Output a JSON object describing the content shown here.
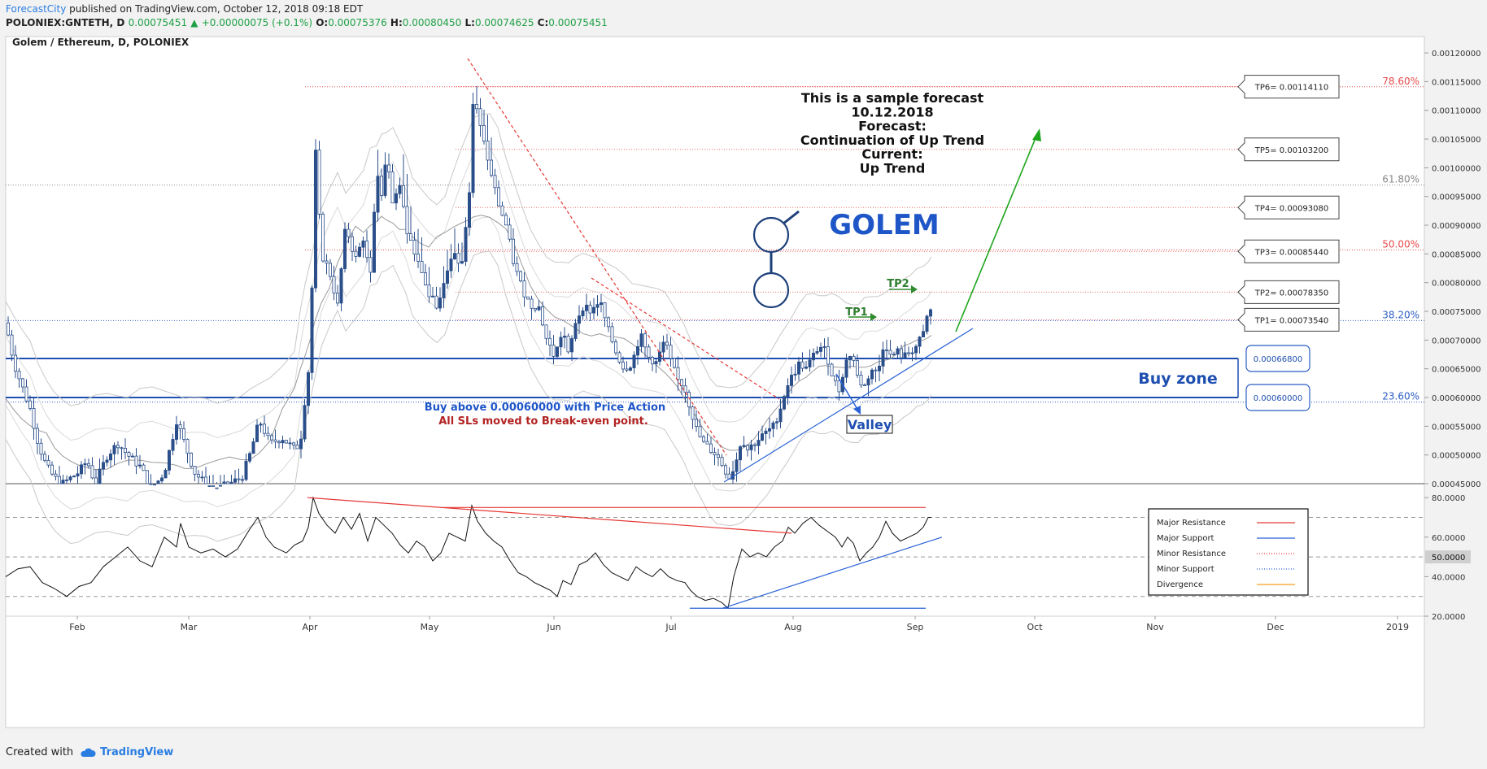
{
  "header": {
    "brand": "ForecastCity",
    "published_text": "published on TradingView.com, October 12, 2018 09:18 EDT",
    "symbol": "POLONIEX:GNTETH, D",
    "last": "0.00075451",
    "change": "+0.00000075 (+0.1%)",
    "o_label": "O:",
    "o": "0.00075376",
    "h_label": "H:",
    "h": "0.00080450",
    "l_label": "L:",
    "l": "0.00074625",
    "c_label": "C:",
    "c": "0.00075451"
  },
  "chart_data": {
    "type": "candlestick",
    "title": "Golem / Ethereum, D, POLONIEX",
    "y_range": [
      0.00045,
      0.00121
    ],
    "y_ticks": [
      "0.00120000",
      "0.00115000",
      "0.00110000",
      "0.00105000",
      "0.00100000",
      "0.00095000",
      "0.00090000",
      "0.00085000",
      "0.00080000",
      "0.00075000",
      "0.00070000",
      "0.00065000",
      "0.00060000",
      "0.00055000",
      "0.00050000",
      "0.00045000"
    ],
    "y_tick_values": [
      0.0012,
      0.00115,
      0.0011,
      0.00105,
      0.001,
      0.00095,
      0.0009,
      0.00085,
      0.0008,
      0.00075,
      0.0007,
      0.00065,
      0.0006,
      0.00055,
      0.0005,
      0.00045
    ],
    "x_tick_labels": [
      "Feb",
      "Mar",
      "Apr",
      "May",
      "Jun",
      "Jul",
      "Aug",
      "Sep",
      "Oct",
      "Nov",
      "Dec",
      "2019"
    ],
    "price_path": [
      [
        0,
        0.00073
      ],
      [
        10,
        0.00066
      ],
      [
        20,
        0.00062
      ],
      [
        30,
        0.00058
      ],
      [
        40,
        0.00052
      ],
      [
        50,
        0.00048
      ],
      [
        60,
        0.00046
      ],
      [
        70,
        0.00045
      ],
      [
        80,
        0.00046
      ],
      [
        90,
        0.00047
      ],
      [
        100,
        0.00049
      ],
      [
        110,
        0.00045
      ],
      [
        125,
        0.0005
      ],
      [
        138,
        0.00052
      ],
      [
        150,
        0.0005
      ],
      [
        165,
        0.00048
      ],
      [
        180,
        0.00044
      ],
      [
        195,
        0.00047
      ],
      [
        210,
        0.00056
      ],
      [
        220,
        0.00052
      ],
      [
        232,
        0.00047
      ],
      [
        245,
        0.00045
      ],
      [
        260,
        0.00044
      ],
      [
        275,
        0.00045
      ],
      [
        290,
        0.00046
      ],
      [
        300,
        0.0005
      ],
      [
        312,
        0.00056
      ],
      [
        325,
        0.00052
      ],
      [
        340,
        0.00053
      ],
      [
        355,
        0.00051
      ],
      [
        362,
        0.00052
      ],
      [
        368,
        0.0006
      ],
      [
        375,
        0.00068
      ],
      [
        380,
        0.00105
      ],
      [
        388,
        0.00085
      ],
      [
        398,
        0.00082
      ],
      [
        408,
        0.00076
      ],
      [
        418,
        0.0009
      ],
      [
        430,
        0.00084
      ],
      [
        440,
        0.00088
      ],
      [
        448,
        0.0008
      ],
      [
        456,
        0.001
      ],
      [
        462,
        0.00095
      ],
      [
        468,
        0.00103
      ],
      [
        476,
        0.00093
      ],
      [
        484,
        0.00098
      ],
      [
        492,
        0.0009
      ],
      [
        500,
        0.00086
      ],
      [
        510,
        0.00083
      ],
      [
        520,
        0.00078
      ],
      [
        530,
        0.00076
      ],
      [
        540,
        0.0008
      ],
      [
        550,
        0.00086
      ],
      [
        560,
        0.00082
      ],
      [
        570,
        0.00096
      ],
      [
        575,
        0.00113
      ],
      [
        585,
        0.00106
      ],
      [
        595,
        0.001
      ],
      [
        605,
        0.00094
      ],
      [
        615,
        0.0009
      ],
      [
        625,
        0.00083
      ],
      [
        635,
        0.00079
      ],
      [
        645,
        0.00076
      ],
      [
        655,
        0.00076
      ],
      [
        665,
        0.0007
      ],
      [
        675,
        0.00067
      ],
      [
        685,
        0.00072
      ],
      [
        692,
        0.00067
      ],
      [
        700,
        0.00073
      ],
      [
        710,
        0.00076
      ],
      [
        720,
        0.00075
      ],
      [
        730,
        0.00077
      ],
      [
        740,
        0.00072
      ],
      [
        750,
        0.00068
      ],
      [
        760,
        0.00065
      ],
      [
        770,
        0.00066
      ],
      [
        780,
        0.00071
      ],
      [
        790,
        0.00067
      ],
      [
        800,
        0.00066
      ],
      [
        810,
        0.0007
      ],
      [
        818,
        0.00066
      ],
      [
        826,
        0.00063
      ],
      [
        834,
        0.00062
      ],
      [
        842,
        0.00058
      ],
      [
        850,
        0.00054
      ],
      [
        858,
        0.00052
      ],
      [
        866,
        0.00051
      ],
      [
        874,
        0.0005
      ],
      [
        882,
        0.00048
      ],
      [
        890,
        0.00046
      ],
      [
        898,
        0.00049
      ],
      [
        905,
        0.00053
      ],
      [
        912,
        0.00051
      ],
      [
        920,
        0.00052
      ],
      [
        928,
        0.00053
      ],
      [
        936,
        0.00054
      ],
      [
        944,
        0.00055
      ],
      [
        952,
        0.00058
      ],
      [
        960,
        0.00062
      ],
      [
        968,
        0.00064
      ],
      [
        976,
        0.00066
      ],
      [
        984,
        0.00065
      ],
      [
        992,
        0.00067
      ],
      [
        1000,
        0.00069
      ],
      [
        1008,
        0.00068
      ],
      [
        1016,
        0.00064
      ],
      [
        1024,
        0.00061
      ],
      [
        1032,
        0.00066
      ],
      [
        1040,
        0.00068
      ],
      [
        1048,
        0.00063
      ],
      [
        1056,
        0.00062
      ],
      [
        1064,
        0.00065
      ],
      [
        1072,
        0.00064
      ],
      [
        1080,
        0.0007
      ],
      [
        1088,
        0.00067
      ],
      [
        1096,
        0.00068
      ],
      [
        1104,
        0.00067
      ],
      [
        1112,
        0.00068
      ],
      [
        1120,
        0.00069
      ],
      [
        1128,
        0.00071
      ],
      [
        1134,
        0.00075
      ],
      [
        1138,
        0.00075
      ]
    ],
    "fib_levels": [
      {
        "label": "78.60%",
        "value": 0.001141,
        "color": "#e84b4b",
        "style": "dotted"
      },
      {
        "label": "61.80%",
        "value": 0.00097,
        "color": "#888888",
        "style": "dotted"
      },
      {
        "label": "50.00%",
        "value": 0.000857,
        "color": "#e84b4b",
        "style": "dotted"
      },
      {
        "label": "38.20%",
        "value": 0.000734,
        "color": "#2b5cc4",
        "style": "dotted"
      },
      {
        "label": "23.60%",
        "value": 0.000592,
        "color": "#2b5cc4",
        "style": "dotted"
      }
    ],
    "tp_levels": [
      {
        "label": "TP6= 0.00114110",
        "value": 0.0011411
      },
      {
        "label": "TP5= 0.00103200",
        "value": 0.001032
      },
      {
        "label": "TP4= 0.00093080",
        "value": 0.0009308
      },
      {
        "label": "TP3= 0.00085440",
        "value": 0.0008544
      },
      {
        "label": "TP2= 0.00078350",
        "value": 0.0007835
      },
      {
        "label": "TP1= 0.00073540",
        "value": 0.0007354
      }
    ],
    "buy_zone": {
      "label": "Buy zone",
      "top": 0.000668,
      "bottom": 0.0006,
      "top_label": "0.00066800",
      "bottom_label": "0.00060000"
    },
    "annotations": {
      "forecast_lines": [
        "This is a sample forecast",
        "10.12.2018",
        "Forecast:",
        "Continuation of Up Trend",
        "Current:",
        "Up Trend"
      ],
      "golem": "GOLEM",
      "tp1": "TP1",
      "tp2": "TP2",
      "valley": "Valley",
      "buy_note": "Buy above 0.00060000 with Price Action",
      "sl_note": "All SLs moved to Break-even point."
    },
    "colors": {
      "candle": "#2b4f8a",
      "major_resistance": "#e53935",
      "major_support": "#2962d6",
      "arrow": "#1ea51e",
      "buy_zone": "#1e4fb0"
    }
  },
  "rsi": {
    "range": [
      20,
      85
    ],
    "ticks": [
      "80.0000",
      "60.0000",
      "40.0000",
      "20.0000"
    ],
    "tick_values": [
      80,
      60,
      40,
      20
    ],
    "current": "50.0000",
    "current_value": 50,
    "path": [
      [
        0,
        40
      ],
      [
        15,
        44
      ],
      [
        30,
        45
      ],
      [
        45,
        37
      ],
      [
        60,
        34
      ],
      [
        75,
        30
      ],
      [
        90,
        35
      ],
      [
        105,
        37
      ],
      [
        120,
        45
      ],
      [
        135,
        50
      ],
      [
        150,
        55
      ],
      [
        165,
        48
      ],
      [
        180,
        45
      ],
      [
        195,
        60
      ],
      [
        210,
        55
      ],
      [
        215,
        67
      ],
      [
        225,
        55
      ],
      [
        240,
        52
      ],
      [
        255,
        54
      ],
      [
        270,
        50
      ],
      [
        285,
        54
      ],
      [
        300,
        64
      ],
      [
        310,
        70
      ],
      [
        320,
        60
      ],
      [
        330,
        55
      ],
      [
        345,
        52
      ],
      [
        355,
        56
      ],
      [
        365,
        58
      ],
      [
        372,
        65
      ],
      [
        378,
        80
      ],
      [
        385,
        72
      ],
      [
        395,
        66
      ],
      [
        405,
        62
      ],
      [
        415,
        70
      ],
      [
        425,
        64
      ],
      [
        435,
        72
      ],
      [
        445,
        58
      ],
      [
        455,
        70
      ],
      [
        465,
        66
      ],
      [
        475,
        62
      ],
      [
        485,
        56
      ],
      [
        495,
        52
      ],
      [
        505,
        58
      ],
      [
        515,
        55
      ],
      [
        525,
        48
      ],
      [
        535,
        52
      ],
      [
        545,
        62
      ],
      [
        555,
        60
      ],
      [
        565,
        58
      ],
      [
        573,
        76
      ],
      [
        580,
        68
      ],
      [
        590,
        62
      ],
      [
        600,
        58
      ],
      [
        610,
        55
      ],
      [
        620,
        48
      ],
      [
        630,
        42
      ],
      [
        640,
        40
      ],
      [
        650,
        37
      ],
      [
        660,
        35
      ],
      [
        670,
        33
      ],
      [
        678,
        30
      ],
      [
        685,
        38
      ],
      [
        695,
        36
      ],
      [
        705,
        46
      ],
      [
        715,
        48
      ],
      [
        725,
        52
      ],
      [
        735,
        46
      ],
      [
        745,
        42
      ],
      [
        755,
        40
      ],
      [
        765,
        38
      ],
      [
        775,
        45
      ],
      [
        785,
        42
      ],
      [
        795,
        40
      ],
      [
        805,
        44
      ],
      [
        815,
        40
      ],
      [
        825,
        38
      ],
      [
        835,
        37
      ],
      [
        842,
        33
      ],
      [
        850,
        30
      ],
      [
        860,
        28
      ],
      [
        870,
        29
      ],
      [
        880,
        27
      ],
      [
        888,
        24
      ],
      [
        895,
        40
      ],
      [
        905,
        54
      ],
      [
        915,
        50
      ],
      [
        925,
        52
      ],
      [
        935,
        50
      ],
      [
        945,
        55
      ],
      [
        955,
        58
      ],
      [
        962,
        65
      ],
      [
        970,
        62
      ],
      [
        980,
        67
      ],
      [
        990,
        70
      ],
      [
        1000,
        66
      ],
      [
        1010,
        63
      ],
      [
        1020,
        60
      ],
      [
        1028,
        55
      ],
      [
        1035,
        60
      ],
      [
        1042,
        57
      ],
      [
        1050,
        48
      ],
      [
        1058,
        52
      ],
      [
        1066,
        55
      ],
      [
        1074,
        60
      ],
      [
        1082,
        68
      ],
      [
        1090,
        62
      ],
      [
        1100,
        58
      ],
      [
        1110,
        60
      ],
      [
        1120,
        62
      ],
      [
        1128,
        65
      ],
      [
        1134,
        70
      ],
      [
        1138,
        70
      ]
    ],
    "legend": [
      {
        "label": "Major Resistance",
        "color": "#e53935",
        "style": "solid"
      },
      {
        "label": "Major Support",
        "color": "#2962d6",
        "style": "solid"
      },
      {
        "label": "Minor Resistance",
        "color": "#e53935",
        "style": "dotted"
      },
      {
        "label": "Minor Support",
        "color": "#2962d6",
        "style": "dotted"
      },
      {
        "label": "Divergence",
        "color": "#f0a020",
        "style": "solid"
      }
    ]
  },
  "footer": {
    "created_with": "Created with",
    "tv_label": "TradingView"
  }
}
